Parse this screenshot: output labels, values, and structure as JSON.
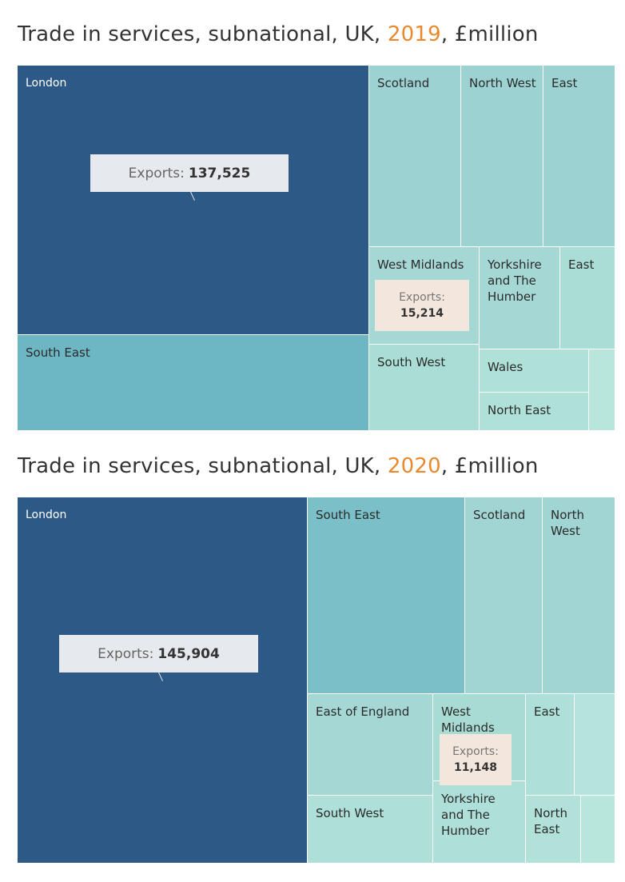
{
  "chart_data": [
    {
      "type": "treemap",
      "title_prefix": "Trade in services, subnational, UK, ",
      "title_year": "2019",
      "title_suffix": ", £million",
      "regions": [
        {
          "name": "London",
          "color": "#2d5986"
        },
        {
          "name": "South East",
          "color": "#6db6c3"
        },
        {
          "name": "Scotland",
          "color": "#9cd3d2"
        },
        {
          "name": "North West",
          "color": "#9cd3d2"
        },
        {
          "name": "East",
          "color": "#9cd3d2"
        },
        {
          "name": "West Midlands",
          "color": "#a5d8d4"
        },
        {
          "name": "Yorkshire and The Humber",
          "color": "#a5d8d4"
        },
        {
          "name": "East",
          "color": "#aaddd6"
        },
        {
          "name": "South West",
          "color": "#aaddd6"
        },
        {
          "name": "Wales",
          "color": "#b0e1d9"
        },
        {
          "name": "North East",
          "color": "#b0e1d9"
        },
        {
          "name": "",
          "color": "#b8e5dc"
        }
      ],
      "callouts": [
        {
          "label": "Exports:",
          "value": "137,525"
        },
        {
          "label": "Exports:",
          "value": "15,214"
        }
      ]
    },
    {
      "type": "treemap",
      "title_prefix": "Trade in services, subnational, UK, ",
      "title_year": "2020",
      "title_suffix": ", £million",
      "regions": [
        {
          "name": "London",
          "color": "#2d5986"
        },
        {
          "name": "South East",
          "color": "#7bc0c8"
        },
        {
          "name": "Scotland",
          "color": "#a1d5d3"
        },
        {
          "name": "North West",
          "color": "#a1d5d3"
        },
        {
          "name": "East of England",
          "color": "#a5d8d4"
        },
        {
          "name": "West Midlands",
          "color": "#a9dbd5"
        },
        {
          "name": "East",
          "color": "#aedfd8"
        },
        {
          "name": "",
          "color": "#b6e3db"
        },
        {
          "name": "South West",
          "color": "#aedfd8"
        },
        {
          "name": "Yorkshire and The Humber",
          "color": "#aedfd8"
        },
        {
          "name": "North East",
          "color": "#b2e1d9"
        },
        {
          "name": "",
          "color": "#b8e5dc"
        }
      ],
      "callouts": [
        {
          "label": "Exports:",
          "value": "145,904"
        },
        {
          "label": "Exports:",
          "value": "11,148"
        }
      ]
    }
  ]
}
